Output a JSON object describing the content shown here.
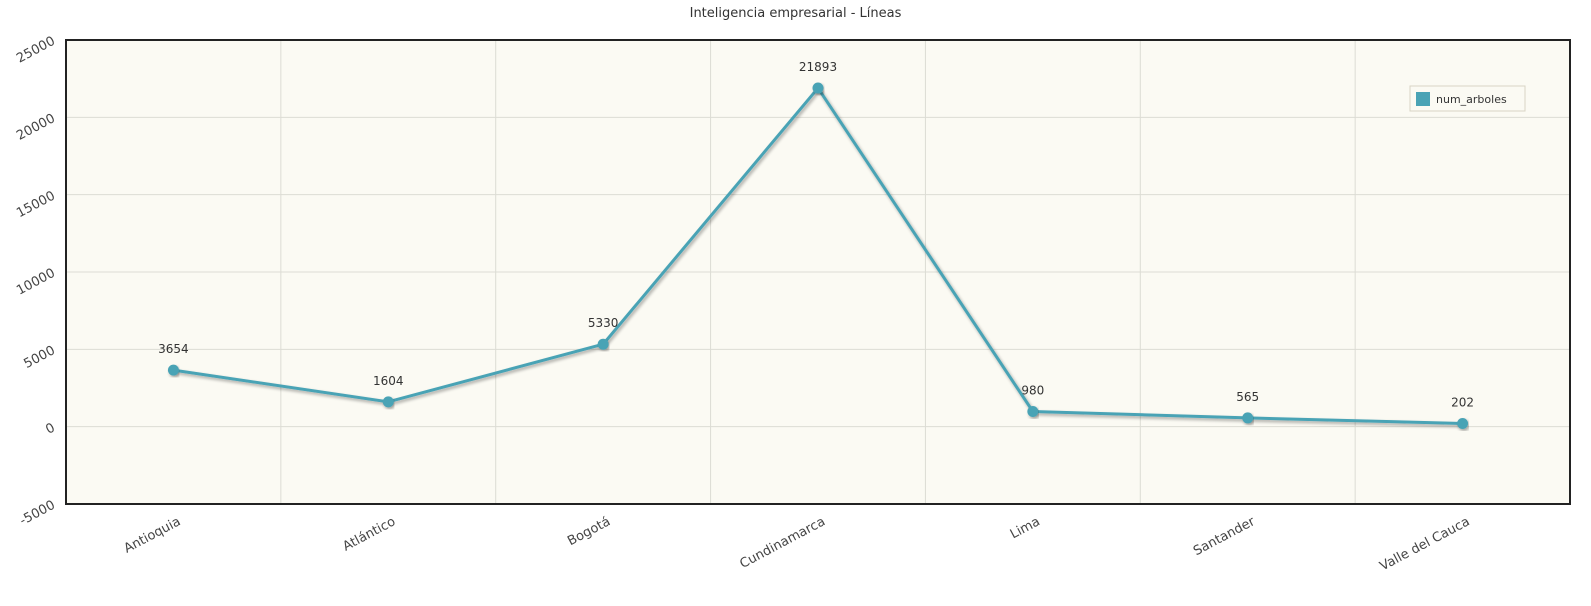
{
  "chart_data": {
    "type": "line",
    "title": "Inteligencia empresarial - Líneas",
    "categories": [
      "Antioquia",
      "Atlántico",
      "Bogotá",
      "Cundinamarca",
      "Lima",
      "Santander",
      "Valle del Cauca"
    ],
    "series": [
      {
        "name": "num_arboles",
        "values": [
          3654,
          1604,
          5330,
          21893,
          980,
          565,
          202
        ],
        "color": "#4aa3b5"
      }
    ],
    "ylim": [
      -5000,
      25000
    ],
    "yticks": [
      -5000,
      0,
      5000,
      10000,
      15000,
      20000,
      25000
    ],
    "xlabel": "",
    "ylabel": "",
    "grid": true,
    "legend_position": "top-right",
    "background_color": "#fbfaf3"
  }
}
